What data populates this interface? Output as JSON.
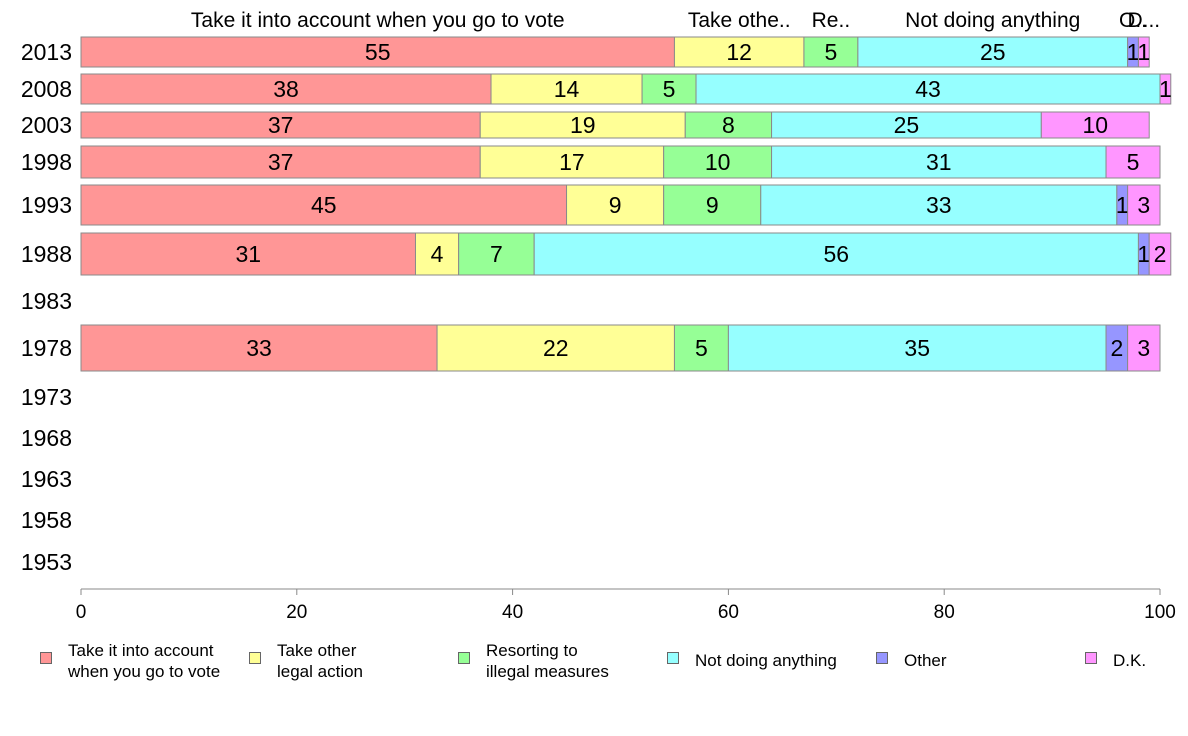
{
  "chart_data": {
    "type": "bar",
    "orientation": "horizontal",
    "stacked": true,
    "categories": [
      "2013",
      "2008",
      "2003",
      "1998",
      "1993",
      "1988",
      "1983",
      "1978",
      "1973",
      "1968",
      "1963",
      "1958",
      "1953"
    ],
    "series": [
      {
        "name": "Take it into account\nwhen you go to vote",
        "top_label": "Take it into account when you go to vote",
        "color": "#ff9696",
        "values": [
          55,
          38,
          37,
          37,
          45,
          31,
          null,
          33,
          null,
          null,
          null,
          null,
          null
        ]
      },
      {
        "name": "Take other\nlegal action",
        "top_label": "Take othe..",
        "color": "#ffff96",
        "values": [
          12,
          14,
          19,
          17,
          9,
          4,
          null,
          22,
          null,
          null,
          null,
          null,
          null
        ]
      },
      {
        "name": "Resorting to\nillegal measures",
        "top_label": "Re..",
        "color": "#96ff96",
        "values": [
          5,
          5,
          8,
          10,
          9,
          7,
          null,
          5,
          null,
          null,
          null,
          null,
          null
        ]
      },
      {
        "name": "Not doing anything",
        "top_label": "Not doing anything",
        "color": "#96ffff",
        "values": [
          25,
          43,
          25,
          31,
          33,
          56,
          null,
          35,
          null,
          null,
          null,
          null,
          null
        ]
      },
      {
        "name": "Other",
        "top_label": "O..",
        "color": "#9696ff",
        "values": [
          1,
          0,
          0,
          0,
          1,
          1,
          null,
          2,
          null,
          null,
          null,
          null,
          null
        ]
      },
      {
        "name": "D.K.",
        "top_label": "D...",
        "color": "#ff96ff",
        "values": [
          1,
          1,
          10,
          5,
          3,
          2,
          null,
          3,
          null,
          null,
          null,
          null,
          null
        ]
      }
    ],
    "xlim": [
      0,
      100
    ],
    "xticks": [
      0,
      20,
      40,
      60,
      80,
      100
    ],
    "grid": false,
    "legend_position": "bottom"
  }
}
